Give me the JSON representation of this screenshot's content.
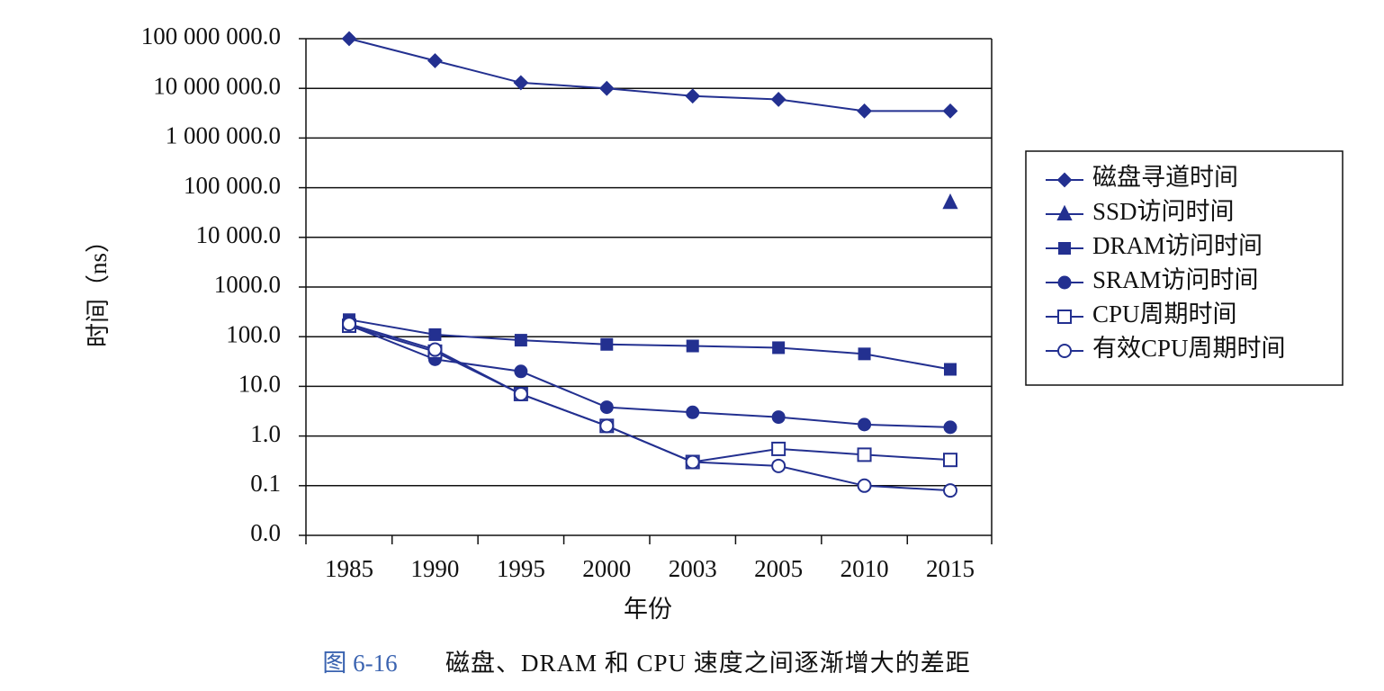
{
  "chart_data": {
    "type": "line",
    "log_scale_y": true,
    "grid": true,
    "legend": "right",
    "ylabel": "时间（ns）",
    "xlabel": "年份",
    "caption_number": "图 6-16",
    "caption": "磁盘、DRAM 和 CPU 速度之间逐渐增大的差距",
    "categories": [
      "1985",
      "1990",
      "1995",
      "2000",
      "2003",
      "2005",
      "2010",
      "2015"
    ],
    "ylim": [
      0.01,
      100000000
    ],
    "yticks": [
      {
        "value": 0.01,
        "label": "0.0"
      },
      0.1,
      {
        "value": 1,
        "label": "1.0"
      },
      {
        "value": 10,
        "label": "10.0"
      },
      {
        "value": 100,
        "label": "100.0"
      },
      {
        "value": 1000,
        "label": "1000.0"
      },
      {
        "value": 10000,
        "label": "10 000.0"
      },
      {
        "value": 100000,
        "label": "100 000.0"
      },
      {
        "value": 1000000,
        "label": "1 000 000.0"
      },
      {
        "value": 10000000,
        "label": "10 000 000.0"
      },
      {
        "value": 100000000,
        "label": "100 000 000.0"
      }
    ],
    "series": [
      {
        "name": "磁盘寻道时间",
        "color": "#233090",
        "marker": "diamond",
        "values": [
          100000000,
          36000000,
          13000000,
          10000000,
          7000000,
          6000000,
          3500000,
          3500000
        ]
      },
      {
        "name": "SSD访问时间",
        "color": "#233090",
        "marker": "triangle",
        "values": [
          null,
          null,
          null,
          null,
          null,
          null,
          null,
          50000
        ]
      },
      {
        "name": "DRAM访问时间",
        "color": "#233090",
        "marker": "square",
        "values": [
          220,
          110,
          85,
          70,
          65,
          60,
          45,
          22
        ]
      },
      {
        "name": "SRAM访问时间",
        "color": "#233090",
        "marker": "circle",
        "values": [
          170,
          35,
          20,
          3.8,
          3,
          2.4,
          1.7,
          1.5
        ]
      },
      {
        "name": "CPU周期时间",
        "color": "#233090",
        "marker": "open-square",
        "values": [
          166,
          50,
          7,
          1.6,
          0.3,
          0.55,
          0.42,
          0.33
        ]
      },
      {
        "name": "有效CPU周期时间",
        "color": "#233090",
        "marker": "open-circle",
        "values": [
          180,
          55,
          7,
          1.6,
          0.3,
          0.25,
          0.1,
          0.08
        ]
      }
    ]
  }
}
